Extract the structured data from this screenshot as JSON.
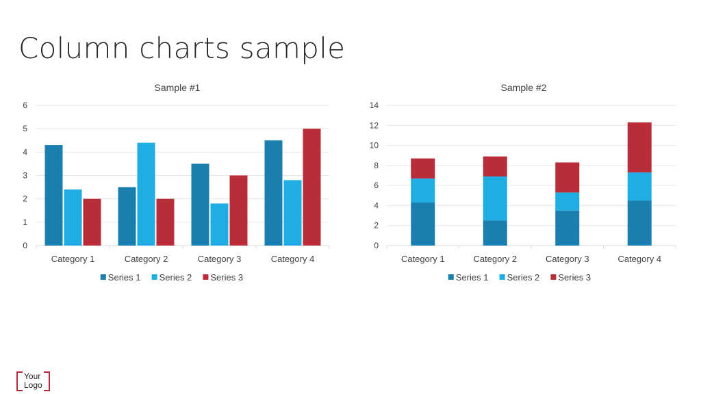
{
  "page": {
    "title": "Column charts sample"
  },
  "logo": {
    "line1": "Your",
    "line2": "Logo"
  },
  "colors": {
    "series1": "#1a7faf",
    "series2": "#1eaee3",
    "series3": "#b82d38",
    "grid": "#e6e6e6",
    "axis": "#d9d9d9"
  },
  "chart_data": [
    {
      "type": "bar",
      "stacked": false,
      "title": "Sample #1",
      "categories": [
        "Category 1",
        "Category 2",
        "Category 3",
        "Category 4"
      ],
      "series": [
        {
          "name": "Series 1",
          "values": [
            4.3,
            2.5,
            3.5,
            4.5
          ]
        },
        {
          "name": "Series 2",
          "values": [
            2.4,
            4.4,
            1.8,
            2.8
          ]
        },
        {
          "name": "Series 3",
          "values": [
            2,
            2,
            3,
            5
          ]
        }
      ],
      "ylim": [
        0,
        6
      ],
      "yticks": [
        0,
        1,
        2,
        3,
        4,
        5,
        6
      ],
      "xlabel": "",
      "ylabel": "",
      "grid": true,
      "legend": "bottom"
    },
    {
      "type": "bar",
      "stacked": true,
      "title": "Sample #2",
      "categories": [
        "Category 1",
        "Category 2",
        "Category 3",
        "Category 4"
      ],
      "series": [
        {
          "name": "Series 1",
          "values": [
            4.3,
            2.5,
            3.5,
            4.5
          ]
        },
        {
          "name": "Series 2",
          "values": [
            2.4,
            4.4,
            1.8,
            2.8
          ]
        },
        {
          "name": "Series 3",
          "values": [
            2,
            2,
            3,
            5
          ]
        }
      ],
      "ylim": [
        0,
        14
      ],
      "yticks": [
        0,
        2,
        4,
        6,
        8,
        10,
        12,
        14
      ],
      "xlabel": "",
      "ylabel": "",
      "grid": true,
      "legend": "bottom"
    }
  ]
}
